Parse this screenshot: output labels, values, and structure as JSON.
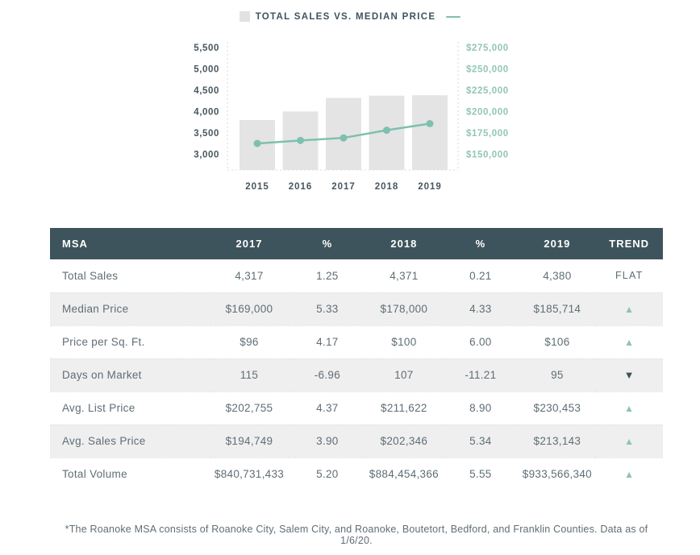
{
  "colors": {
    "slate": "#3e545c",
    "teal": "#7ec0ae",
    "teal_text": "#92c5b7",
    "bar_fill": "#e4e4e4",
    "legend_square": "#e2e2e2",
    "row_alt_bg": "#efefef",
    "text": "#5f6e75",
    "trend_up": "#92c2b4",
    "trend_down": "#3e545c",
    "axis_line": "#d9d9d9"
  },
  "chart": {
    "legend_label": "TOTAL SALES VS. MEDIAN PRICE"
  },
  "chart_data": {
    "type": "combo",
    "title": "TOTAL SALES VS. MEDIAN PRICE",
    "categories": [
      "2015",
      "2016",
      "2017",
      "2018",
      "2019"
    ],
    "series": [
      {
        "name": "Total Sales",
        "chart": "bar",
        "axis": "left",
        "values": [
          3800,
          4000,
          4317,
          4371,
          4380
        ]
      },
      {
        "name": "Median Price",
        "chart": "line",
        "axis": "right",
        "values": [
          162500,
          166000,
          169000,
          178000,
          185714
        ]
      }
    ],
    "left_axis": {
      "tick_labels": [
        "5,500",
        "5,000",
        "4,500",
        "4,000",
        "3,500",
        "3,000"
      ],
      "tick_values": [
        5500,
        5000,
        4500,
        4000,
        3500,
        3000
      ],
      "range_bottom": 2630,
      "range_top": 5640
    },
    "right_axis": {
      "tick_labels": [
        "$275,000",
        "$250,000",
        "$225,000",
        "$200,000",
        "$175,000",
        "$150,000"
      ],
      "tick_values": [
        275000,
        250000,
        225000,
        200000,
        175000,
        150000
      ],
      "range_bottom": 131500,
      "range_top": 282000
    },
    "legend_position": "top",
    "grid": "dotted-frame"
  },
  "table": {
    "columns": [
      "MSA",
      "2017",
      "%",
      "2018",
      "%",
      "2019",
      "TREND"
    ],
    "trend_flat_label": "FLAT",
    "rows": [
      {
        "label": "Total Sales",
        "values": [
          "4,317",
          "1.25",
          "4,371",
          "0.21",
          "4,380"
        ],
        "trend": "flat"
      },
      {
        "label": "Median Price",
        "values": [
          "$169,000",
          "5.33",
          "$178,000",
          "4.33",
          "$185,714"
        ],
        "trend": "up"
      },
      {
        "label": "Price per Sq. Ft.",
        "values": [
          "$96",
          "4.17",
          "$100",
          "6.00",
          "$106"
        ],
        "trend": "up"
      },
      {
        "label": "Days on Market",
        "values": [
          "115",
          "-6.96",
          "107",
          "-11.21",
          "95"
        ],
        "trend": "down"
      },
      {
        "label": "Avg. List Price",
        "values": [
          "$202,755",
          "4.37",
          "$211,622",
          "8.90",
          "$230,453"
        ],
        "trend": "up"
      },
      {
        "label": "Avg. Sales Price",
        "values": [
          "$194,749",
          "3.90",
          "$202,346",
          "5.34",
          "$213,143"
        ],
        "trend": "up"
      },
      {
        "label": "Total Volume",
        "values": [
          "$840,731,433",
          "5.20",
          "$884,454,366",
          "5.55",
          "$933,566,340"
        ],
        "trend": "up"
      }
    ]
  },
  "footnote": "*The Roanoke MSA consists of Roanoke City, Salem City, and Roanoke, Boutetort, Bedford, and Franklin Counties. Data as of 1/6/20."
}
